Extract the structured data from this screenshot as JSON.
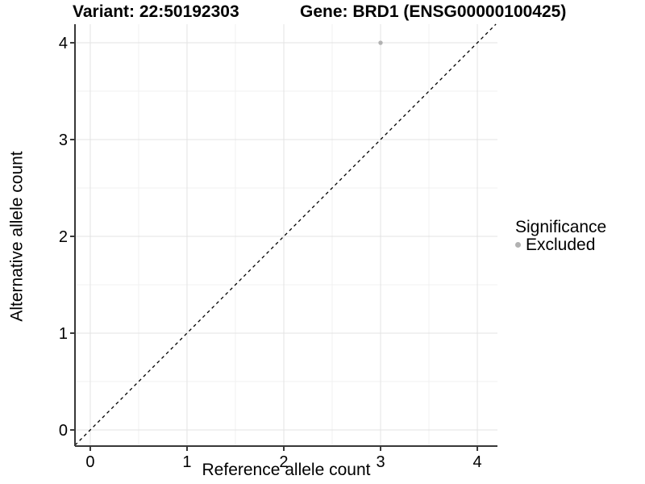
{
  "header": {
    "variant": "Variant: 22:50192303",
    "gene": "Gene: BRD1 (ENSG00000100425)"
  },
  "chart_data": {
    "type": "scatter",
    "xlabel": "Reference allele count",
    "ylabel": "Alternative allele count",
    "xlim": [
      -0.158,
      4.208
    ],
    "ylim": [
      -0.167,
      4.192
    ],
    "x_ticks": [
      0,
      1,
      2,
      3,
      4
    ],
    "y_ticks": [
      0,
      1,
      2,
      3,
      4
    ],
    "minor_step": 0.5,
    "grid": true,
    "identity_line": {
      "style": "dashed",
      "color": "#000000"
    },
    "points": [
      {
        "x": 3,
        "y": 4,
        "series": "Excluded"
      }
    ],
    "legend": {
      "title": "Significance",
      "position": "right",
      "items": [
        {
          "label": "Excluded",
          "color": "#b2b2b2"
        }
      ]
    }
  },
  "colors": {
    "background": "#ffffff",
    "grid_major": "#e3e3e3",
    "grid_minor": "#f0f0f0",
    "axis_line": "#383838",
    "tick_mark": "#383838",
    "text": "#000000",
    "point": "#b2b2b2"
  }
}
